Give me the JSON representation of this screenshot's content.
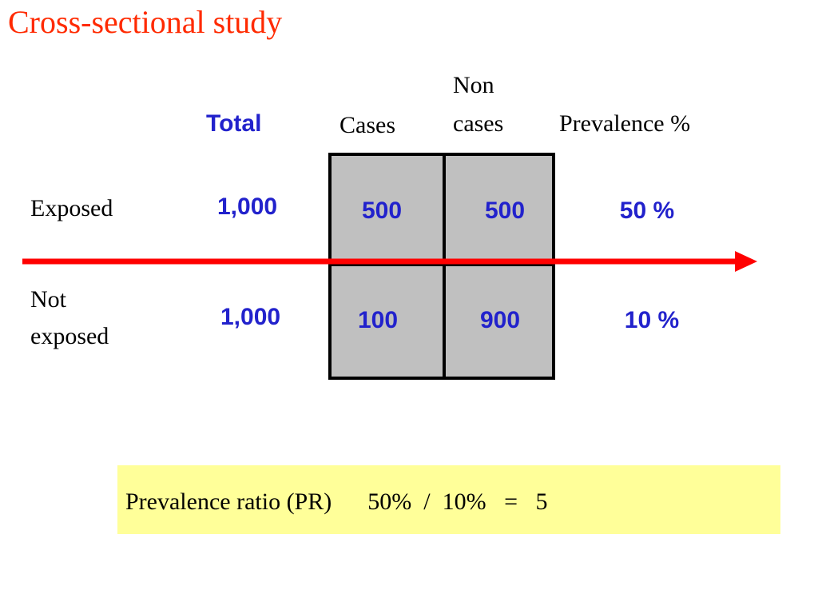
{
  "title": "Cross-sectional study",
  "colors": {
    "title": "#ff2a00",
    "numbers": "#2222cc",
    "arrow": "#ff0000",
    "cells": "#c0c0c0",
    "ratio_box": "#ffff99"
  },
  "headers": {
    "total": "Total",
    "cases": "Cases",
    "non_cases_line1": "Non",
    "non_cases_line2": "cases",
    "prevalence": "Prevalence %"
  },
  "rows": [
    {
      "label_line1": "Exposed",
      "label_line2": "",
      "total": "1,000",
      "cases": "500",
      "non_cases": "500",
      "prevalence": "50 %"
    },
    {
      "label_line1": "Not",
      "label_line2": "exposed",
      "total": "1,000",
      "cases": "100",
      "non_cases": "900",
      "prevalence": "10 %"
    }
  ],
  "ratio": {
    "label": "Prevalence ratio (PR)",
    "numerator": "50%",
    "operator": "/",
    "denominator": "10%",
    "equals": "=",
    "result": "5"
  }
}
